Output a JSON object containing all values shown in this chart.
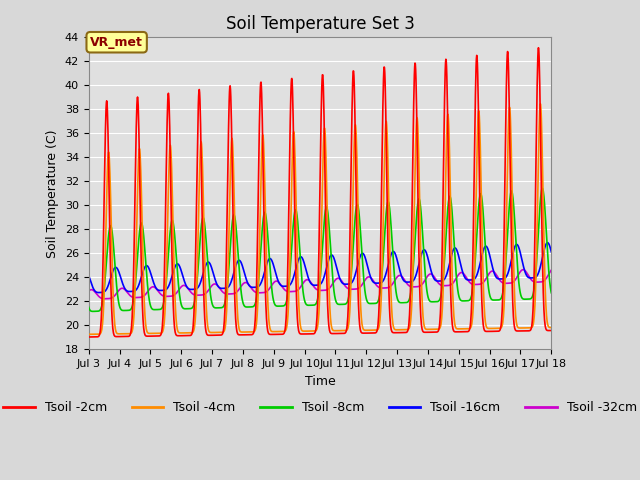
{
  "title": "Soil Temperature Set 3",
  "xlabel": "Time",
  "ylabel": "Soil Temperature (C)",
  "ylim": [
    18,
    44
  ],
  "yticks": [
    18,
    20,
    22,
    24,
    26,
    28,
    30,
    32,
    34,
    36,
    38,
    40,
    42,
    44
  ],
  "xlim": [
    3,
    18
  ],
  "xtick_positions": [
    3,
    4,
    5,
    6,
    7,
    8,
    9,
    10,
    11,
    12,
    13,
    14,
    15,
    16,
    17,
    18
  ],
  "xtick_labels": [
    "Jul 3",
    "Jul 4",
    "Jul 5",
    "Jul 6",
    "Jul 7",
    "Jul 8",
    "Jul 9",
    "Jul 10",
    "Jul 11",
    "Jul 12",
    "Jul 13",
    "Jul 14",
    "Jul 15",
    "Jul 16",
    "Jul 17",
    "Jul 18"
  ],
  "colors": {
    "Tsoil -2cm": "#ff0000",
    "Tsoil -4cm": "#ff8c00",
    "Tsoil -8cm": "#00cc00",
    "Tsoil -16cm": "#0000ff",
    "Tsoil -32cm": "#cc00cc"
  },
  "fig_facecolor": "#d8d8d8",
  "plot_bg_color": "#e0e0e0",
  "annotation_text": "VR_met",
  "annotation_bg": "#ffff99",
  "annotation_border": "#8b6914",
  "grid_color": "#ffffff",
  "title_fontsize": 12,
  "label_fontsize": 9,
  "tick_fontsize": 8,
  "legend_fontsize": 9,
  "line_width": 1.2,
  "peak_hour": 14,
  "hours_per_day": 24,
  "n_days": 15
}
